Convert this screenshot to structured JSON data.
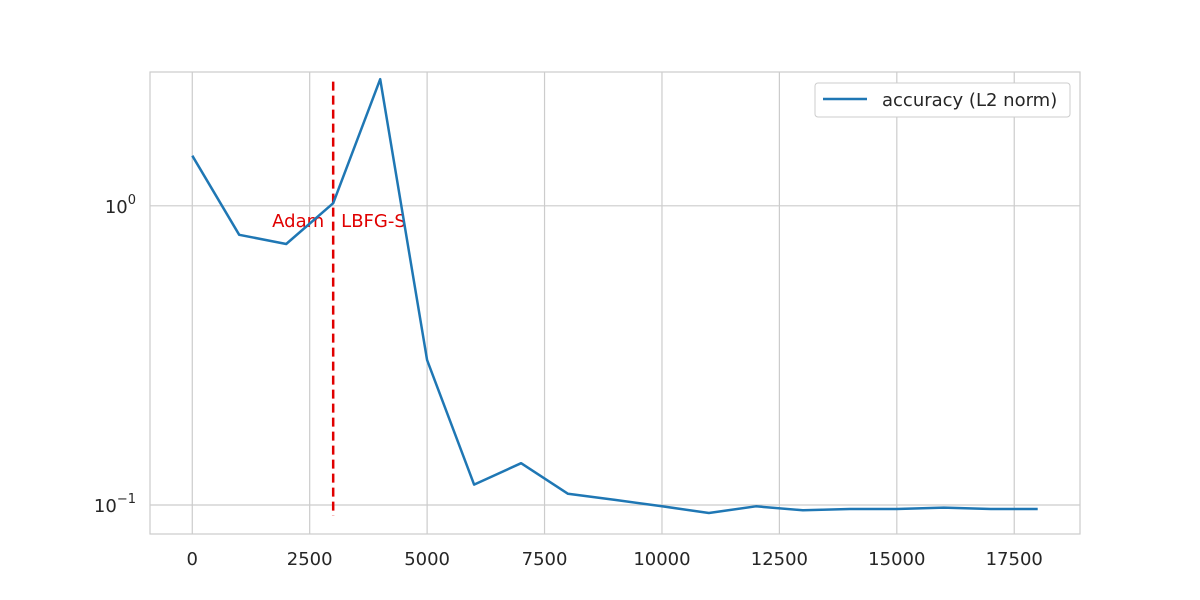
{
  "chart_data": {
    "type": "line",
    "title": "",
    "xlabel": "",
    "ylabel": "",
    "yscale": "log",
    "grid": true,
    "legend_position": "top-right",
    "xlim": [
      -900,
      18900
    ],
    "ylim": [
      0.08,
      2.8
    ],
    "x_ticks": [
      0,
      2500,
      5000,
      7500,
      10000,
      12500,
      15000,
      17500
    ],
    "x_tick_labels": [
      "0",
      "2500",
      "5000",
      "7500",
      "10000",
      "12500",
      "15000",
      "17500"
    ],
    "y_ticks": [
      {
        "value": 1,
        "base": "10",
        "exponent": "0"
      },
      {
        "value": 0.1,
        "base": "10",
        "exponent": "−1"
      }
    ],
    "series": [
      {
        "name": "accuracy (L2 norm)",
        "color": "#1f77b4",
        "x": [
          0,
          1000,
          2000,
          3000,
          4000,
          5000,
          6000,
          7000,
          8000,
          9000,
          10000,
          11000,
          12000,
          13000,
          14000,
          15000,
          16000,
          17000,
          18000
        ],
        "y": [
          1.47,
          0.8,
          0.745,
          1.02,
          2.65,
          0.305,
          0.117,
          0.138,
          0.109,
          0.104,
          0.099,
          0.094,
          0.099,
          0.096,
          0.097,
          0.097,
          0.098,
          0.097,
          0.097
        ]
      }
    ],
    "annotations": {
      "switch_x": 3000,
      "switch_color": "#e00000",
      "left_label": "Adam",
      "right_label": "LBFG-S"
    }
  }
}
